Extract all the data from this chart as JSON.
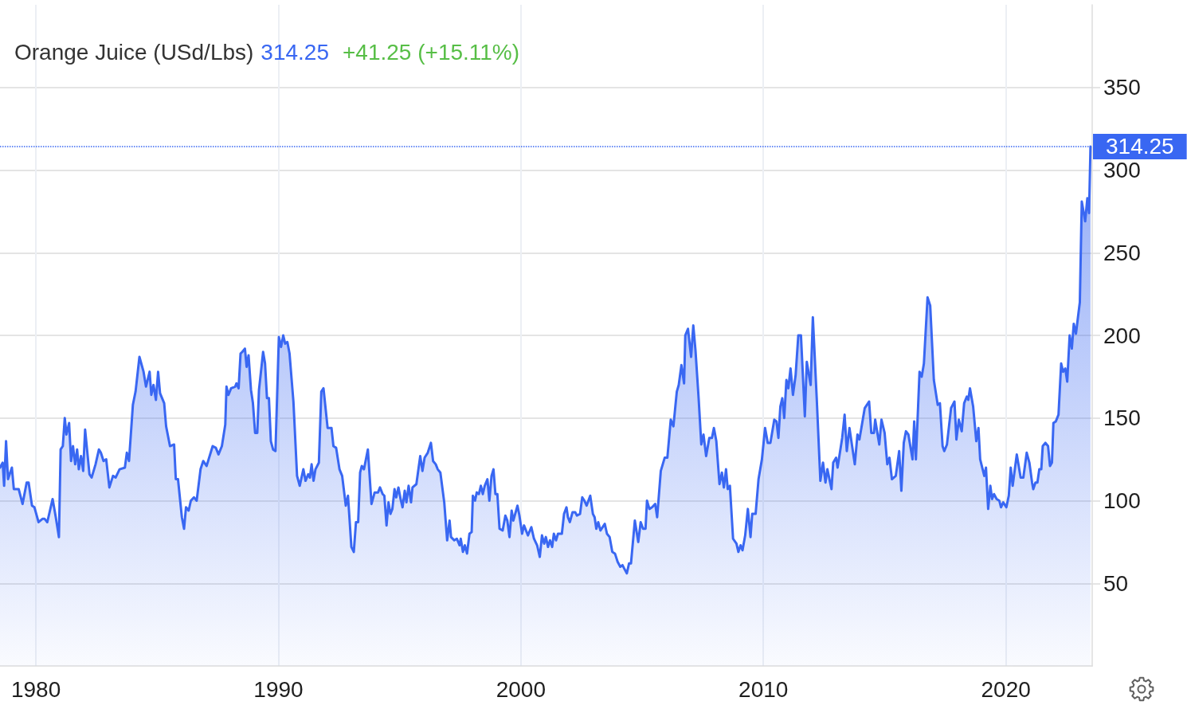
{
  "chart_data": {
    "type": "area",
    "title": "Orange Juice (USd/Lbs)",
    "annotations": [
      "314.25",
      "+41.25 (+15.11%)"
    ],
    "x": [
      1978.52,
      1978.63,
      1978.69,
      1978.77,
      1978.85,
      1979.01,
      1979.09,
      1979.29,
      1979.45,
      1979.62,
      1979.7,
      1979.84,
      1979.94,
      1980.11,
      1980.27,
      1980.36,
      1980.47,
      1980.69,
      1980.82,
      1980.95,
      1981.02,
      1981.11,
      1981.19,
      1981.26,
      1981.37,
      1981.45,
      1981.53,
      1981.62,
      1981.7,
      1981.77,
      1981.86,
      1981.95,
      1982.03,
      1982.21,
      1982.3,
      1982.46,
      1982.6,
      1982.68,
      1982.79,
      1982.9,
      1983.03,
      1983.18,
      1983.29,
      1983.45,
      1983.67,
      1983.75,
      1983.84,
      1984.0,
      1984.11,
      1984.27,
      1984.44,
      1984.54,
      1984.69,
      1984.76,
      1984.85,
      1984.95,
      1985.04,
      1985.12,
      1985.29,
      1985.37,
      1985.53,
      1985.7,
      1985.77,
      1985.86,
      1986.02,
      1986.11,
      1986.19,
      1986.3,
      1986.39,
      1986.52,
      1986.63,
      1986.79,
      1986.9,
      1987.04,
      1987.29,
      1987.42,
      1987.53,
      1987.67,
      1987.81,
      1987.86,
      1987.94,
      1988.05,
      1988.22,
      1988.27,
      1988.36,
      1988.44,
      1988.51,
      1988.62,
      1988.69,
      1988.77,
      1988.87,
      1988.95,
      1989.04,
      1989.13,
      1989.2,
      1989.37,
      1989.45,
      1989.53,
      1989.61,
      1989.69,
      1989.78,
      1989.88,
      1990.02,
      1990.11,
      1990.2,
      1990.28,
      1990.37,
      1990.46,
      1990.62,
      1990.77,
      1990.88,
      1991.03,
      1991.12,
      1991.23,
      1991.3,
      1991.37,
      1991.45,
      1991.53,
      1991.67,
      1991.77,
      1991.86,
      1992.03,
      1992.19,
      1992.27,
      1992.38,
      1992.52,
      1992.63,
      1992.78,
      1992.87,
      1993.01,
      1993.11,
      1993.2,
      1993.29,
      1993.37,
      1993.44,
      1993.53,
      1993.69,
      1993.84,
      1993.97,
      1994.11,
      1994.19,
      1994.3,
      1994.37,
      1994.46,
      1994.54,
      1994.62,
      1994.7,
      1994.79,
      1994.86,
      1994.95,
      1995.04,
      1995.12,
      1995.21,
      1995.28,
      1995.37,
      1995.47,
      1995.53,
      1995.69,
      1995.85,
      1995.94,
      1996.03,
      1996.16,
      1996.29,
      1996.38,
      1996.49,
      1996.57,
      1996.68,
      1996.84,
      1996.96,
      1997.06,
      1997.12,
      1997.25,
      1997.36,
      1997.47,
      1997.52,
      1997.61,
      1997.69,
      1997.78,
      1997.88,
      1997.97,
      1998.02,
      1998.11,
      1998.18,
      1998.27,
      1998.35,
      1998.43,
      1998.51,
      1998.62,
      1998.7,
      1998.79,
      1998.87,
      1998.95,
      1999.03,
      1999.12,
      1999.25,
      1999.36,
      1999.44,
      1999.53,
      1999.62,
      1999.69,
      1999.86,
      1999.94,
      2000.05,
      2000.13,
      2000.29,
      2000.43,
      2000.54,
      2000.67,
      2000.78,
      2000.87,
      2000.96,
      2001.03,
      2001.12,
      2001.2,
      2001.29,
      2001.36,
      2001.45,
      2001.53,
      2001.69,
      2001.78,
      2001.88,
      2001.94,
      2002.02,
      2002.13,
      2002.24,
      2002.31,
      2002.44,
      2002.53,
      2002.62,
      2002.71,
      2002.86,
      2002.97,
      2003.04,
      2003.11,
      2003.19,
      2003.28,
      2003.46,
      2003.55,
      2003.66,
      2003.77,
      2003.88,
      2003.99,
      2004.1,
      2004.19,
      2004.26,
      2004.37,
      2004.46,
      2004.54,
      2004.7,
      2004.84,
      2004.94,
      2005.04,
      2005.14,
      2005.2,
      2005.3,
      2005.41,
      2005.54,
      2005.62,
      2005.77,
      2005.93,
      2006.04,
      2006.18,
      2006.29,
      2006.43,
      2006.51,
      2006.62,
      2006.73,
      2006.78,
      2006.89,
      2007.02,
      2007.11,
      2007.2,
      2007.33,
      2007.44,
      2007.53,
      2007.64,
      2007.77,
      2007.88,
      2007.96,
      2008.06,
      2008.19,
      2008.29,
      2008.37,
      2008.46,
      2008.53,
      2008.62,
      2008.75,
      2008.89,
      2008.97,
      2009.06,
      2009.14,
      2009.25,
      2009.36,
      2009.47,
      2009.54,
      2009.68,
      2009.8,
      2009.94,
      2010.07,
      2010.18,
      2010.29,
      2010.45,
      2010.54,
      2010.62,
      2010.7,
      2010.78,
      2010.86,
      2010.95,
      2011.03,
      2011.12,
      2011.22,
      2011.33,
      2011.44,
      2011.55,
      2011.71,
      2011.79,
      2011.95,
      2012.04,
      2012.2,
      2012.35,
      2012.46,
      2012.56,
      2012.64,
      2012.81,
      2012.88,
      2013.0,
      2013.06,
      2013.25,
      2013.35,
      2013.44,
      2013.55,
      2013.77,
      2013.88,
      2013.96,
      2014.18,
      2014.36,
      2014.45,
      2014.56,
      2014.61,
      2014.78,
      2014.87,
      2015.0,
      2015.11,
      2015.2,
      2015.3,
      2015.46,
      2015.6,
      2015.69,
      2015.79,
      2015.88,
      2015.98,
      2016.15,
      2016.22,
      2016.29,
      2016.44,
      2016.53,
      2016.62,
      2016.77,
      2016.88,
      2017.03,
      2017.19,
      2017.28,
      2017.39,
      2017.46,
      2017.57,
      2017.74,
      2017.88,
      2017.96,
      2018.06,
      2018.18,
      2018.28,
      2018.39,
      2018.45,
      2018.52,
      2018.65,
      2018.78,
      2018.87,
      2018.94,
      2019.11,
      2019.18,
      2019.27,
      2019.36,
      2019.43,
      2019.51,
      2019.62,
      2019.73,
      2019.8,
      2019.89,
      2020.02,
      2020.12,
      2020.2,
      2020.28,
      2020.45,
      2020.61,
      2020.72,
      2020.86,
      2020.97,
      2021.08,
      2021.13,
      2021.22,
      2021.3,
      2021.38,
      2021.46,
      2021.52,
      2021.63,
      2021.74,
      2021.82,
      2021.9,
      2021.96,
      2022.06,
      2022.17,
      2022.28,
      2022.36,
      2022.45,
      2022.53,
      2022.63,
      2022.72,
      2022.8,
      2022.89,
      2022.99,
      2023.05,
      2023.13,
      2023.27,
      2023.36,
      2023.43,
      2023.49
    ],
    "values": [
      120,
      123,
      109,
      136,
      113,
      120,
      107,
      107,
      98,
      111,
      111,
      97,
      96,
      87,
      89,
      89,
      87,
      101,
      90,
      78,
      131,
      133,
      150,
      140,
      147,
      124,
      133,
      122,
      131,
      119,
      127,
      118,
      143,
      116,
      114,
      122,
      131,
      129,
      124,
      125,
      108,
      115,
      114,
      119,
      120,
      129,
      124,
      158,
      166,
      187,
      178,
      169,
      178,
      164,
      170,
      161,
      178,
      165,
      159,
      145,
      133,
      134,
      113,
      113,
      90,
      83,
      96,
      94,
      100,
      102,
      100,
      119,
      124,
      121,
      133,
      132,
      128,
      133,
      146,
      169,
      164,
      168,
      169,
      171,
      168,
      189,
      190,
      192,
      181,
      188,
      167,
      159,
      141,
      141,
      167,
      190,
      183,
      162,
      162,
      136,
      131,
      130,
      199,
      193,
      200,
      195,
      196,
      189,
      160,
      115,
      109,
      119,
      112,
      116,
      114,
      122,
      112,
      119,
      123,
      166,
      168,
      144,
      144,
      133,
      132,
      119,
      115,
      97,
      103,
      72,
      69,
      87,
      87,
      117,
      121,
      119,
      131,
      98,
      105,
      105,
      108,
      104,
      103,
      85,
      99,
      92,
      95,
      107,
      102,
      108,
      101,
      96,
      106,
      99,
      109,
      99,
      108,
      110,
      127,
      118,
      126,
      129,
      135,
      124,
      122,
      119,
      117,
      99,
      76,
      88,
      78,
      76,
      77,
      73,
      77,
      69,
      73,
      68,
      80,
      81,
      103,
      100,
      105,
      104,
      109,
      104,
      109,
      113,
      100,
      115,
      119,
      104,
      104,
      83,
      82,
      91,
      88,
      78,
      94,
      88,
      97,
      91,
      80,
      85,
      79,
      84,
      77,
      73,
      66,
      79,
      74,
      78,
      72,
      76,
      72,
      80,
      76,
      80,
      80,
      92,
      96,
      90,
      87,
      93,
      93,
      91,
      92,
      102,
      100,
      97,
      103,
      92,
      90,
      83,
      87,
      82,
      86,
      80,
      78,
      69,
      68,
      63,
      60,
      61,
      59,
      56,
      62,
      62,
      88,
      75,
      87,
      83,
      83,
      100,
      95,
      96,
      98,
      90,
      118,
      126,
      126,
      149,
      145,
      166,
      170,
      182,
      171,
      200,
      204,
      187,
      206,
      191,
      162,
      134,
      140,
      127,
      138,
      138,
      144,
      136,
      110,
      117,
      108,
      119,
      107,
      109,
      77,
      74,
      69,
      73,
      70,
      79,
      95,
      78,
      92,
      92,
      113,
      125,
      144,
      135,
      135,
      149,
      148,
      138,
      157,
      162,
      150,
      173,
      168,
      180,
      164,
      176,
      200,
      200,
      151,
      184,
      170,
      211,
      162,
      112,
      123,
      111,
      119,
      107,
      123,
      126,
      120,
      138,
      152,
      130,
      144,
      122,
      140,
      137,
      156,
      160,
      141,
      141,
      149,
      134,
      149,
      141,
      122,
      126,
      113,
      115,
      130,
      106,
      135,
      142,
      140,
      125,
      148,
      125,
      178,
      175,
      183,
      223,
      218,
      173,
      158,
      159,
      133,
      130,
      134,
      156,
      160,
      137,
      149,
      142,
      159,
      163,
      161,
      168,
      157,
      136,
      144,
      125,
      115,
      120,
      95,
      109,
      101,
      104,
      101,
      100,
      96,
      99,
      96,
      103,
      120,
      109,
      128,
      114,
      114,
      129,
      123,
      111,
      107,
      111,
      111,
      119,
      119,
      133,
      135,
      133,
      121,
      123,
      147,
      148,
      152,
      183,
      178,
      180,
      172,
      200,
      192,
      207,
      201,
      213,
      220,
      281,
      269,
      283,
      274,
      314.25
    ],
    "color": "#3967f2",
    "xlim": [
      1978.52,
      2023.56
    ],
    "xticks": [
      1980,
      1990,
      2000,
      2010,
      2020
    ],
    "ylim": [
      0,
      400
    ],
    "yticks": [
      50,
      100,
      150,
      200,
      250,
      300,
      350
    ],
    "grid": true,
    "marker": "none",
    "line_style": "solid",
    "ref_lines": [
      {
        "axis": "y",
        "value": 314.25,
        "label": "314.25",
        "color": "#3967f2",
        "line_style": "dotted"
      }
    ]
  }
}
